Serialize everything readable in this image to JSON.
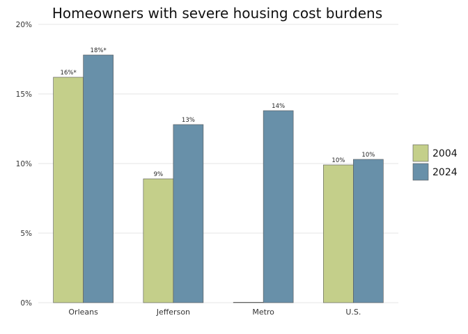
{
  "chart_data": {
    "type": "bar",
    "title": "Homeowners with severe housing cost burdens",
    "xlabel": "",
    "ylabel": "",
    "categories": [
      "Orleans",
      "Jefferson",
      "Metro",
      "U.S."
    ],
    "series": [
      {
        "name": "2004",
        "color": "#c4cf8a",
        "values": [
          16.2,
          8.9,
          0,
          9.9
        ],
        "labels": [
          "16%*",
          "9%",
          "",
          "10%"
        ]
      },
      {
        "name": "2024",
        "color": "#6890a9",
        "values": [
          17.8,
          12.8,
          13.8,
          10.3
        ],
        "labels": [
          "18%*",
          "13%",
          "14%",
          "10%"
        ]
      }
    ],
    "ylim": [
      0,
      20
    ],
    "yticks": [
      0,
      5,
      10,
      15,
      20
    ],
    "ytick_labels": [
      "0%",
      "5%",
      "10%",
      "15%",
      "20%"
    ],
    "grid": true,
    "legend_position": "right"
  }
}
